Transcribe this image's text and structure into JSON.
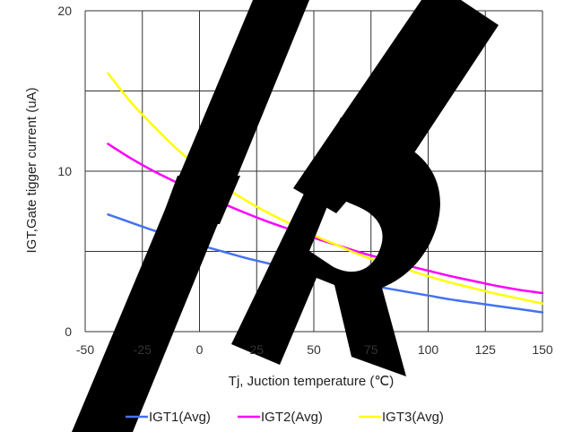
{
  "chart_data": {
    "type": "line",
    "xlabel": "Tj, Juction temperature (℃)",
    "ylabel": "IGT,Gate tigger current (uA)",
    "xlim": [
      -50,
      150
    ],
    "ylim": [
      0,
      20
    ],
    "x_ticks": [
      "-50",
      "-25",
      "0",
      "25",
      "50",
      "75",
      "100",
      "125",
      "150"
    ],
    "y_ticks": [
      "0",
      "10",
      "20"
    ],
    "y_gridlines": [
      0,
      5,
      10,
      15,
      20
    ],
    "grid": true,
    "legend_position": "bottom",
    "series": [
      {
        "name": "IGT1(Avg)",
        "color": "#4472f0",
        "x": [
          -40,
          -30,
          -20,
          -10,
          0,
          10,
          20,
          30,
          40,
          50,
          60,
          70,
          80,
          90,
          100,
          110,
          120,
          130,
          140,
          150
        ],
        "values": [
          7.3,
          6.8,
          6.3,
          5.85,
          5.4,
          5.0,
          4.6,
          4.25,
          3.9,
          3.6,
          3.3,
          3.0,
          2.75,
          2.5,
          2.25,
          2.0,
          1.8,
          1.6,
          1.4,
          1.2
        ]
      },
      {
        "name": "IGT2(Avg)",
        "color": "#ff00ff",
        "x": [
          -40,
          -30,
          -20,
          -10,
          0,
          10,
          20,
          30,
          40,
          50,
          60,
          70,
          80,
          90,
          100,
          110,
          120,
          130,
          140,
          150
        ],
        "values": [
          11.7,
          10.8,
          10.0,
          9.3,
          8.6,
          8.0,
          7.4,
          6.85,
          6.35,
          5.85,
          5.4,
          4.95,
          4.55,
          4.15,
          3.8,
          3.45,
          3.15,
          2.85,
          2.6,
          2.4
        ]
      },
      {
        "name": "IGT3(Avg)",
        "color": "#ffff00",
        "x": [
          -40,
          -30,
          -20,
          -10,
          0,
          10,
          20,
          30,
          40,
          50,
          60,
          70,
          80,
          90,
          100,
          110,
          120,
          130,
          140,
          150
        ],
        "values": [
          16.1,
          14.3,
          12.8,
          11.4,
          10.2,
          9.1,
          8.2,
          7.4,
          6.7,
          6.0,
          5.4,
          4.8,
          4.3,
          3.9,
          3.45,
          3.05,
          2.7,
          2.35,
          2.05,
          1.75
        ]
      }
    ]
  },
  "watermark_text": "ARE"
}
